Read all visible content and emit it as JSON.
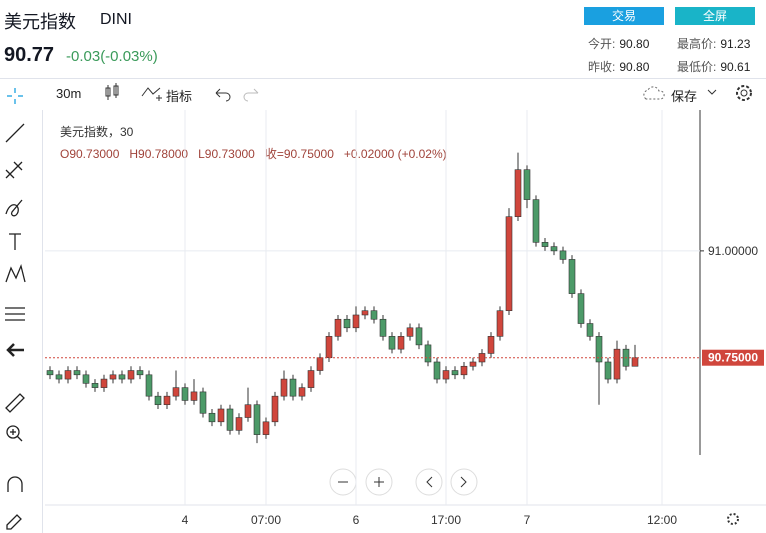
{
  "header": {
    "title": "美元指数",
    "code": "DINI",
    "price": "90.77",
    "change": "-0.03(-0.03%)",
    "buttons": [
      "交易",
      "全屏"
    ],
    "stats": [
      {
        "label": "今开:",
        "value": "90.80"
      },
      {
        "label": "最高价:",
        "value": "91.23"
      },
      {
        "label": "昨收:",
        "value": "90.80"
      },
      {
        "label": "最低价:",
        "value": "90.61"
      }
    ]
  },
  "toolbar": {
    "interval": "30m",
    "indicators": "指标",
    "save": "保存"
  },
  "chart_data": {
    "type": "candlestick",
    "title": "美元指数，30",
    "legend_values": [
      "O90.73000",
      "H90.78000",
      "L90.73000",
      "收=90.75000",
      "+0.02000 (+0.02%)"
    ],
    "up_color": "#d0463c",
    "down_color": "#4c9a68",
    "categories": [
      null,
      null,
      null,
      null,
      null,
      null,
      null,
      null,
      null,
      null,
      null,
      null,
      null,
      null,
      null,
      "4",
      null,
      null,
      null,
      null,
      null,
      null,
      null,
      null,
      "07:00",
      null,
      null,
      null,
      null,
      null,
      null,
      null,
      null,
      null,
      "6",
      null,
      null,
      null,
      null,
      null,
      null,
      null,
      null,
      null,
      "17:00",
      null,
      null,
      null,
      null,
      null,
      null,
      null,
      null,
      "7",
      null,
      null,
      null,
      null,
      null,
      null,
      null,
      null,
      null,
      null,
      null,
      null,
      null,
      null,
      "12:00",
      null
    ],
    "open": [
      90.72,
      90.71,
      90.7,
      90.72,
      90.71,
      90.69,
      90.68,
      90.7,
      90.71,
      90.7,
      90.72,
      90.71,
      90.66,
      90.64,
      90.66,
      90.68,
      90.65,
      90.67,
      90.62,
      90.6,
      90.63,
      90.58,
      90.61,
      90.64,
      90.57,
      90.6,
      90.66,
      90.7,
      90.66,
      90.68,
      90.72,
      90.75,
      90.8,
      90.84,
      90.82,
      90.85,
      90.86,
      90.84,
      90.8,
      90.77,
      90.8,
      90.82,
      90.78,
      90.74,
      90.7,
      90.72,
      90.71,
      90.73,
      90.74,
      90.76,
      90.8,
      90.86,
      91.08,
      91.19,
      91.12,
      91.02,
      91.01,
      91.0,
      90.98,
      90.9,
      90.83,
      90.8,
      90.74,
      90.7,
      90.77,
      90.73,
      null,
      null,
      null,
      null
    ],
    "high": [
      90.73,
      90.72,
      90.73,
      90.73,
      90.72,
      90.7,
      90.71,
      90.72,
      90.72,
      90.73,
      90.73,
      90.72,
      90.67,
      90.67,
      90.72,
      90.69,
      90.7,
      90.68,
      90.63,
      90.64,
      90.64,
      90.62,
      90.68,
      90.65,
      90.61,
      90.67,
      90.72,
      90.71,
      90.69,
      90.73,
      90.76,
      90.81,
      90.85,
      90.85,
      90.87,
      90.87,
      90.87,
      90.85,
      90.81,
      90.81,
      90.83,
      90.83,
      90.79,
      90.75,
      90.73,
      90.73,
      90.74,
      90.75,
      90.77,
      90.81,
      90.87,
      91.1,
      91.23,
      91.2,
      91.13,
      91.03,
      91.02,
      91.01,
      90.99,
      90.91,
      90.84,
      90.81,
      90.75,
      90.79,
      90.78,
      90.78,
      null,
      null,
      null,
      null
    ],
    "low": [
      90.7,
      90.69,
      90.69,
      90.7,
      90.68,
      90.67,
      90.67,
      90.69,
      90.69,
      90.69,
      90.7,
      90.65,
      90.63,
      90.63,
      90.65,
      90.64,
      90.64,
      90.61,
      90.59,
      90.59,
      90.57,
      90.57,
      90.6,
      90.55,
      90.56,
      90.59,
      90.65,
      90.65,
      90.65,
      90.67,
      90.71,
      90.74,
      90.79,
      90.81,
      90.81,
      90.84,
      90.83,
      90.79,
      90.76,
      90.76,
      90.79,
      90.77,
      90.73,
      90.69,
      90.69,
      90.7,
      90.7,
      90.72,
      90.73,
      90.75,
      90.79,
      90.85,
      91.07,
      91.1,
      91.01,
      91.0,
      90.99,
      90.97,
      90.89,
      90.82,
      90.79,
      90.64,
      90.69,
      90.69,
      90.72,
      90.73,
      null,
      null,
      null,
      null
    ],
    "close": [
      90.71,
      90.7,
      90.72,
      90.71,
      90.69,
      90.68,
      90.7,
      90.71,
      90.7,
      90.72,
      90.71,
      90.66,
      90.64,
      90.66,
      90.68,
      90.65,
      90.67,
      90.62,
      90.6,
      90.63,
      90.58,
      90.61,
      90.64,
      90.57,
      90.6,
      90.66,
      90.7,
      90.66,
      90.68,
      90.72,
      90.75,
      90.8,
      90.84,
      90.82,
      90.85,
      90.86,
      90.84,
      90.8,
      90.77,
      90.8,
      90.82,
      90.78,
      90.74,
      90.7,
      90.72,
      90.71,
      90.73,
      90.74,
      90.76,
      90.8,
      90.86,
      91.08,
      91.19,
      91.12,
      91.02,
      91.01,
      91.0,
      90.98,
      90.9,
      90.83,
      90.8,
      90.74,
      90.7,
      90.77,
      90.73,
      90.75,
      null,
      null,
      null,
      null
    ],
    "ylim": [
      90.41,
      91.325
    ],
    "yticks": [
      {
        "value": 91,
        "label": "91.00000"
      }
    ],
    "last_price": {
      "value": 90.75,
      "label": "90.75000"
    },
    "grid": true
  }
}
